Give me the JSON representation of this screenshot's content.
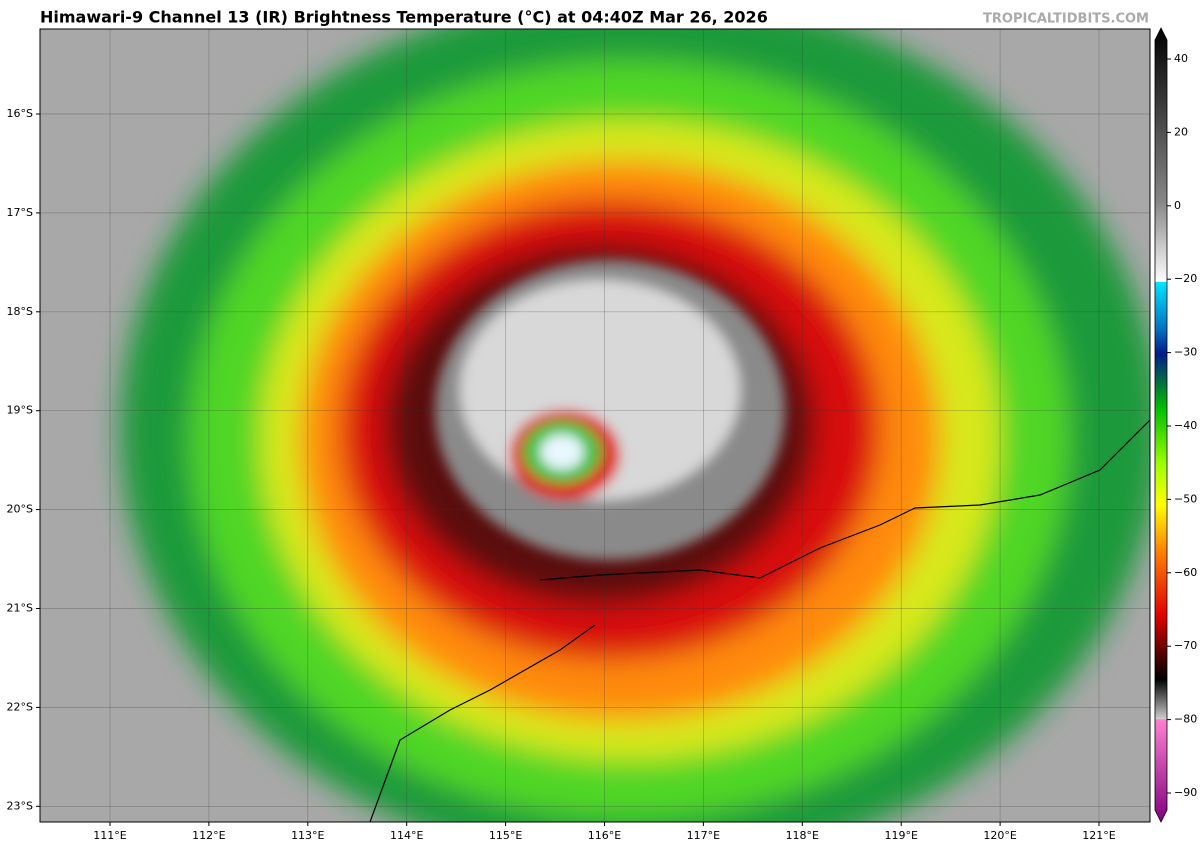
{
  "header": {
    "title": "Himawari-9 Channel 13 (IR) Brightness Temperature (°C) at 04:40Z Mar 26, 2026",
    "watermark": "TROPICALTIDBITS.COM"
  },
  "map": {
    "lat_labels": [
      "16°S",
      "17°S",
      "18°S",
      "19°S",
      "20°S",
      "21°S",
      "22°S",
      "23°S"
    ],
    "lon_labels": [
      "111°E",
      "112°E",
      "113°E",
      "114°E",
      "115°E",
      "116°E",
      "117°E",
      "118°E",
      "119°E",
      "120°E",
      "121°E"
    ]
  },
  "colorbar": {
    "ticks": [
      "40",
      "20",
      "0",
      "−20",
      "−30",
      "−40",
      "−50",
      "−60",
      "−70",
      "−80",
      "−90"
    ]
  }
}
